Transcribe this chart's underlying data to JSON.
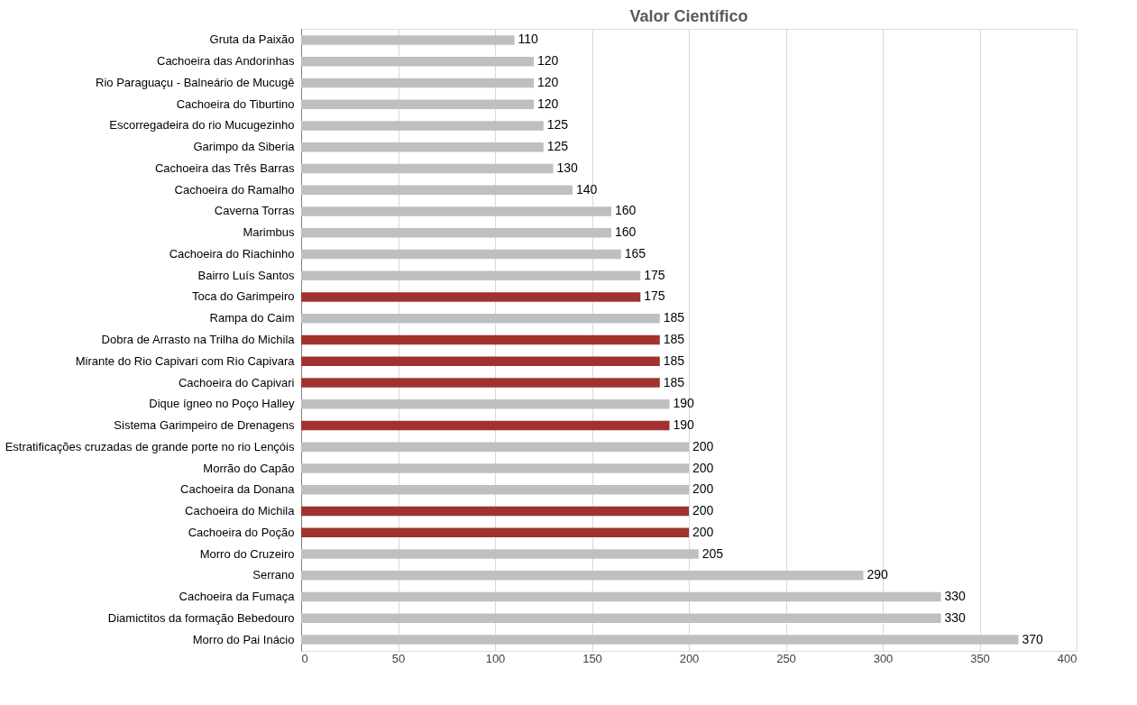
{
  "chart_data": {
    "type": "bar",
    "orientation": "horizontal",
    "title": "Valor Científico",
    "categories": [
      "Gruta da Paixão",
      "Cachoeira das Andorinhas",
      "Rio Paraguaçu - Balneário de Mucugê",
      "Cachoeira do Tiburtino",
      "Escorregadeira do rio Mucugezinho",
      "Garimpo da Siberia",
      "Cachoeira das Três Barras",
      "Cachoeira do Ramalho",
      "Caverna Torras",
      "Marimbus",
      "Cachoeira do Riachinho",
      "Bairro Luís Santos",
      "Toca do Garimpeiro",
      "Rampa do Caim",
      "Dobra de Arrasto na Trilha do Michila",
      "Mirante do Rio Capivari com Rio Capivara",
      "Cachoeira do Capivari",
      "Dique ígneo no Poço Halley",
      "Sistema Garimpeiro de Drenagens",
      "Estratificações cruzadas de grande porte no rio Lençóis",
      "Morrão do Capão",
      "Cachoeira da Donana",
      "Cachoeira do Michila",
      "Cachoeira do Poção",
      "Morro do Cruzeiro",
      "Serrano",
      "Cachoeira da Fumaça",
      "Diamictitos da formação Bebedouro",
      "Morro do Pai Inácio"
    ],
    "values": [
      110,
      120,
      120,
      120,
      125,
      125,
      130,
      140,
      160,
      160,
      165,
      175,
      175,
      185,
      185,
      185,
      185,
      190,
      190,
      200,
      200,
      200,
      200,
      200,
      205,
      290,
      330,
      330,
      370
    ],
    "colors": [
      "#bfbfbf",
      "#bfbfbf",
      "#bfbfbf",
      "#bfbfbf",
      "#bfbfbf",
      "#bfbfbf",
      "#bfbfbf",
      "#bfbfbf",
      "#bfbfbf",
      "#bfbfbf",
      "#bfbfbf",
      "#bfbfbf",
      "#a0332d",
      "#bfbfbf",
      "#a0332d",
      "#a0332d",
      "#a0332d",
      "#bfbfbf",
      "#a0332d",
      "#bfbfbf",
      "#bfbfbf",
      "#bfbfbf",
      "#a0332d",
      "#a0332d",
      "#bfbfbf",
      "#bfbfbf",
      "#bfbfbf",
      "#bfbfbf",
      "#bfbfbf"
    ],
    "xlim": [
      0,
      400
    ],
    "xticks": [
      0,
      50,
      100,
      150,
      200,
      250,
      300,
      350,
      400
    ],
    "grid": "x",
    "data_labels": true
  }
}
